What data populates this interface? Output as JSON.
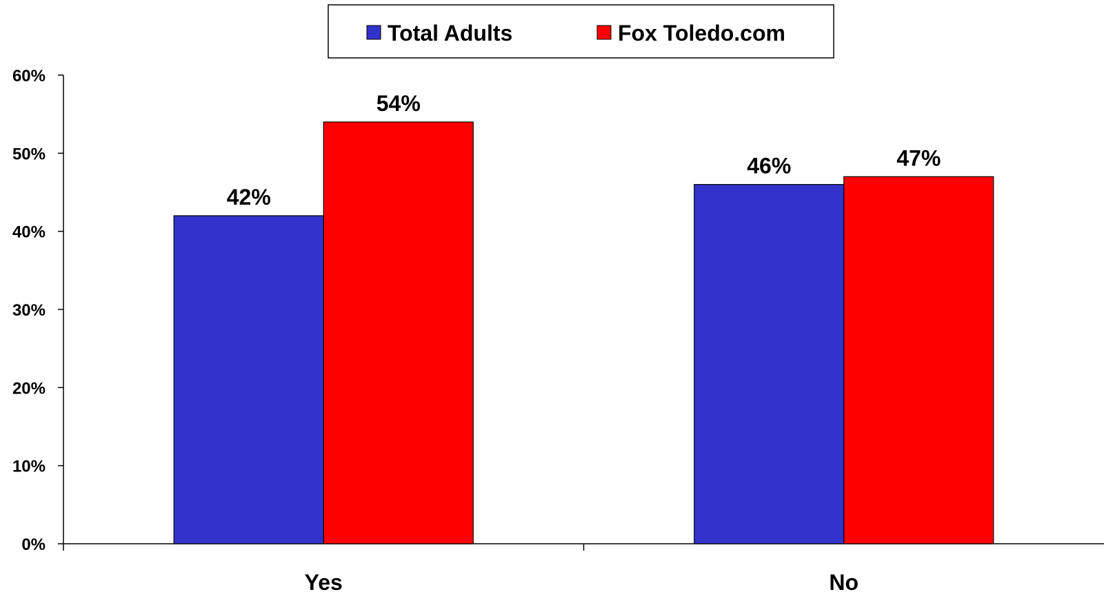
{
  "chart_data": {
    "type": "bar",
    "title": "",
    "xlabel": "",
    "ylabel": "",
    "categories": [
      "Yes",
      "No"
    ],
    "series": [
      {
        "name": "Total Adults",
        "values": [
          42,
          46
        ],
        "labels": [
          "42%",
          "46%"
        ],
        "color": "#3333CC"
      },
      {
        "name": "Fox Toledo.com",
        "values": [
          54,
          47
        ],
        "labels": [
          "54%",
          "47%"
        ],
        "color": "#FF0000"
      }
    ],
    "ylim": [
      0,
      60
    ],
    "yticks": [
      0,
      10,
      20,
      30,
      40,
      50,
      60
    ],
    "ytick_labels": [
      "0%",
      "10%",
      "20%",
      "30%",
      "40%",
      "50%",
      "60%"
    ],
    "grid": false,
    "legend_position": "top-center"
  }
}
